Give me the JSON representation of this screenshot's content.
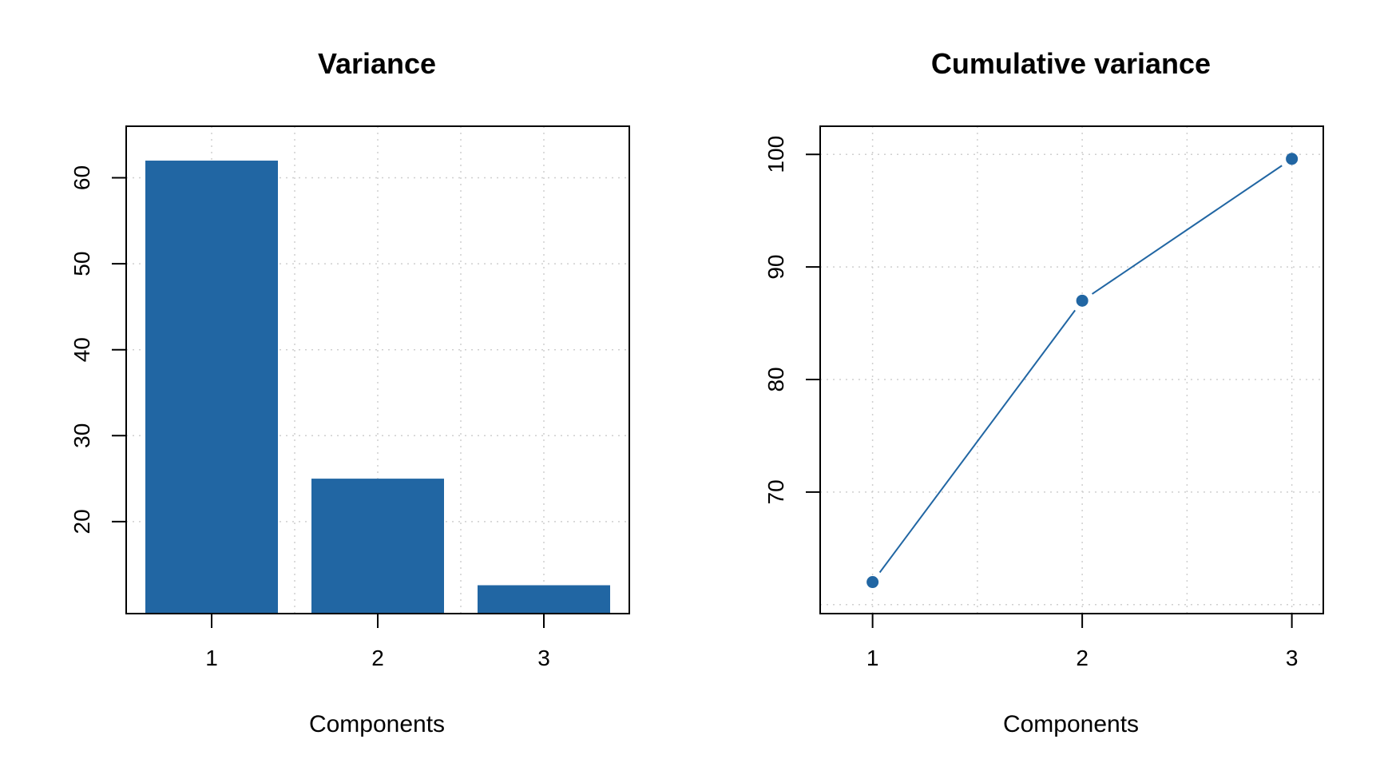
{
  "colors": {
    "series": "#2166a3",
    "grid": "#cfcfcf",
    "axis": "#000000",
    "background": "#ffffff"
  },
  "chart_data": [
    {
      "type": "bar",
      "title": "Variance",
      "xlabel": "Components",
      "ylabel": "",
      "categories": [
        "1",
        "2",
        "3"
      ],
      "values": [
        62,
        25,
        12.6
      ],
      "ylim": [
        9.3,
        66
      ],
      "yticks": [
        20,
        30,
        40,
        50,
        60
      ],
      "ytick_labels": [
        "20",
        "30",
        "40",
        "50",
        "60"
      ],
      "grid": true
    },
    {
      "type": "line",
      "title": "Cumulative variance",
      "xlabel": "Components",
      "ylabel": "",
      "x": [
        1,
        2,
        3
      ],
      "values": [
        62,
        87,
        99.6
      ],
      "xlim": [
        0.75,
        3.15
      ],
      "ylim": [
        59.2,
        102.5
      ],
      "xticks": [
        1,
        2,
        3
      ],
      "xtick_labels": [
        "1",
        "2",
        "3"
      ],
      "yticks": [
        70,
        80,
        90,
        100
      ],
      "ytick_labels": [
        "70",
        "80",
        "90",
        "100"
      ],
      "markers": "filled-circle",
      "grid": true
    }
  ]
}
